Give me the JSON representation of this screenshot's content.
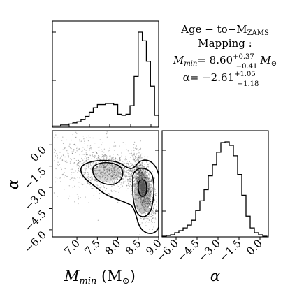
{
  "chart_data": [
    {
      "type": "histogram",
      "panel": "top-left",
      "xlim": [
        6.4,
        9.0
      ],
      "bin_edges": [
        6.4,
        6.5,
        6.6,
        6.7,
        6.8,
        6.9,
        7.0,
        7.1,
        7.2,
        7.3,
        7.4,
        7.5,
        7.6,
        7.7,
        7.8,
        7.9,
        8.0,
        8.1,
        8.2,
        8.3,
        8.4,
        8.5,
        8.6,
        8.7,
        8.8,
        8.9,
        9.0
      ],
      "counts": [
        1,
        1,
        2,
        2,
        3,
        4,
        5,
        7,
        10,
        14,
        18,
        21,
        21,
        22,
        22,
        21,
        12,
        11,
        12,
        20,
        47,
        88,
        80,
        61,
        38,
        11
      ]
    },
    {
      "type": "scatter-density",
      "panel": "bottom-left",
      "xlim": [
        6.4,
        9.0
      ],
      "ylim": [
        -6.5,
        1.0
      ],
      "xlabel_parts": [
        "M",
        "min",
        " (M",
        "⊙",
        ")"
      ],
      "ylabel": "α",
      "xticks": [
        7.0,
        7.5,
        8.0,
        8.5,
        9.0
      ],
      "xtick_labels": [
        "7.0",
        "7.5",
        "8.0",
        "8.5",
        "9.0"
      ],
      "yticks": [
        0.0,
        -1.5,
        -3.0,
        -4.5,
        -6.0
      ],
      "ytick_labels": [
        "0.0",
        "−1.5",
        "−3.0",
        "−4.5",
        "−6.0"
      ]
    },
    {
      "type": "histogram",
      "panel": "bottom-right",
      "xlim": [
        -7.0,
        0.6
      ],
      "xlabel": "α",
      "xticks": [
        -6.0,
        -4.5,
        -3.0,
        -1.5,
        0.0
      ],
      "xtick_labels": [
        "−6.0",
        "−4.5",
        "−3.0",
        "−1.5",
        "0.0"
      ],
      "bin_edges": [
        -7.0,
        -6.7,
        -6.4,
        -6.1,
        -5.8,
        -5.5,
        -5.2,
        -4.9,
        -4.6,
        -4.3,
        -4.0,
        -3.7,
        -3.4,
        -3.1,
        -2.8,
        -2.5,
        -2.2,
        -1.9,
        -1.6,
        -1.3,
        -1.0,
        -0.7,
        -0.4,
        -0.1,
        0.2,
        0.5
      ],
      "counts": [
        1,
        2,
        3,
        6,
        9,
        13,
        17,
        24,
        38,
        52,
        68,
        88,
        104,
        122,
        136,
        137,
        132,
        117,
        90,
        60,
        30,
        13,
        6,
        3,
        1
      ]
    }
  ],
  "annotation": {
    "line1": "Age − to−M",
    "line1_sub": "ZAMS",
    "line2": "Mapping :",
    "line3_pre": "M",
    "line3_sub": "min",
    "line3_val": "= 8.60",
    "line3_sup": "+0.37",
    "line3_lo": "−0.41",
    "line3_unit": "M",
    "line3_unit_sub": "⊙",
    "line4_pre": "α= −2.61",
    "line4_sup": "+1.05",
    "line4_lo": "−1.18"
  }
}
